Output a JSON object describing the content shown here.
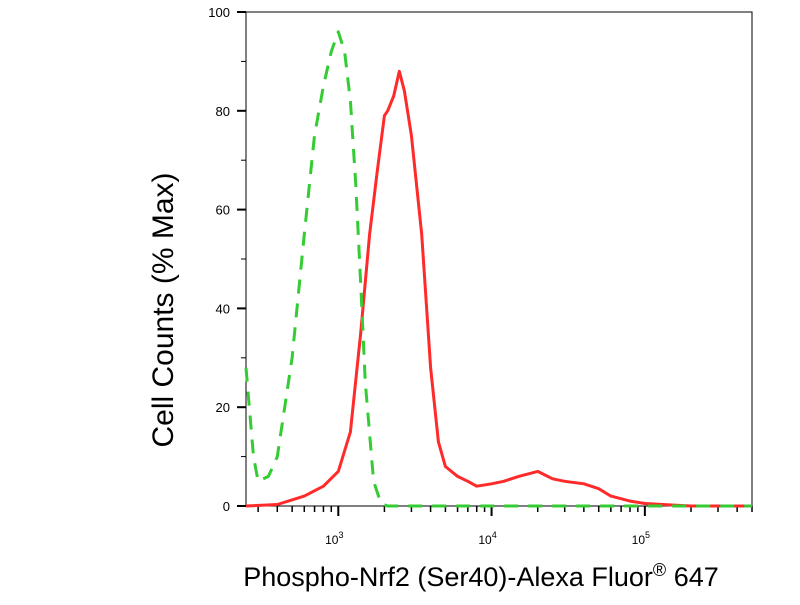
{
  "colors": {
    "series_0": "#ff2a2a",
    "series_1": "#33cc33",
    "axis": "#000000",
    "frame": "#000000"
  },
  "chart_data": {
    "type": "line",
    "title": "",
    "xlabel_main": "Phospho-Nrf2 (Ser40)-Alexa Fluor",
    "xlabel_sup": "®",
    "xlabel_tail": " 647",
    "ylabel": "Cell Counts (% Max)",
    "x_scale": "log",
    "xlim": [
      250,
      500000
    ],
    "ylim": [
      0,
      100
    ],
    "grid": false,
    "legend": "none",
    "y_ticks": [
      0,
      20,
      40,
      60,
      80,
      100
    ],
    "y_tick_labels": [
      "0",
      "20",
      "40",
      "60",
      "80",
      "100"
    ],
    "x_ticks": [
      1000,
      10000,
      100000
    ],
    "x_tick_labels": [
      {
        "base": "10",
        "exp": "3"
      },
      {
        "base": "10",
        "exp": "4"
      },
      {
        "base": "10",
        "exp": "5"
      }
    ],
    "series": [
      {
        "style": "solid",
        "color_key": "series_0",
        "x": [
          250,
          400,
          600,
          800,
          1000,
          1200,
          1400,
          1600,
          1800,
          2000,
          2100,
          2300,
          2500,
          2700,
          3000,
          3500,
          4000,
          4500,
          5000,
          6000,
          7000,
          8000,
          10000,
          12000,
          15000,
          20000,
          25000,
          30000,
          40000,
          50000,
          60000,
          80000,
          100000,
          150000,
          200000,
          500000
        ],
        "y": [
          0,
          0.3,
          2,
          4,
          7,
          15,
          35,
          55,
          68,
          79,
          80,
          83,
          88,
          84,
          75,
          55,
          28,
          13,
          8,
          6,
          5,
          4,
          4.5,
          5,
          6,
          7,
          5.5,
          5,
          4.5,
          3.5,
          2,
          1,
          0.5,
          0.2,
          0,
          0
        ]
      },
      {
        "style": "dashed",
        "color_key": "series_1",
        "x": [
          250,
          280,
          300,
          350,
          400,
          500,
          600,
          700,
          800,
          900,
          1000,
          1100,
          1200,
          1300,
          1400,
          1500,
          1700,
          1900,
          2100,
          2500,
          500000
        ],
        "y": [
          28,
          10,
          5,
          6,
          10,
          30,
          55,
          75,
          85,
          92,
          96,
          92,
          82,
          65,
          45,
          25,
          5,
          0.5,
          0,
          0,
          0
        ]
      }
    ]
  }
}
